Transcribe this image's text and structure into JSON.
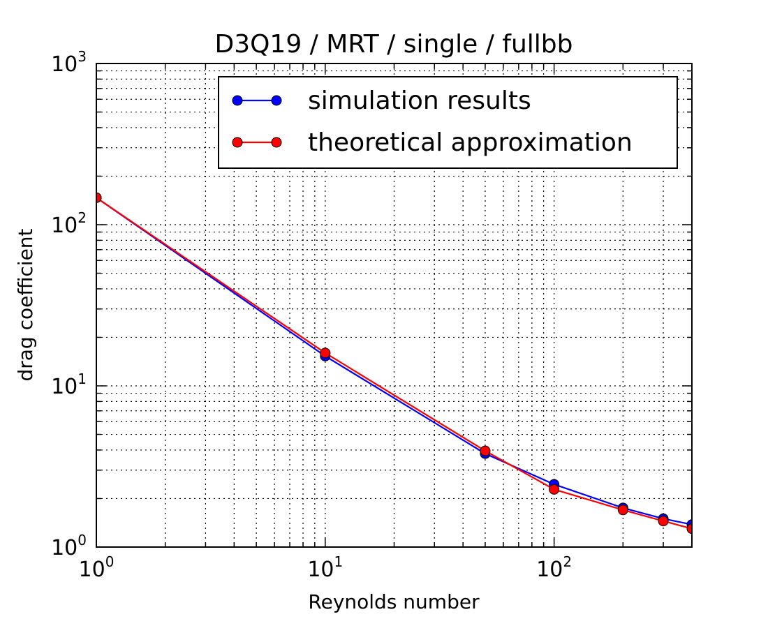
{
  "chart_data": {
    "type": "line",
    "title": "D3Q19 / MRT / single / fullbb",
    "xlabel": "Reynolds number",
    "ylabel": "drag coefficient",
    "x_scale": "log",
    "y_scale": "log",
    "xlim": [
      1,
      400
    ],
    "ylim": [
      1,
      1000
    ],
    "grid": true,
    "legend_position": "top-right",
    "x_ticks": [
      {
        "value": 1,
        "base": "10",
        "exp": "0"
      },
      {
        "value": 10,
        "base": "10",
        "exp": "1"
      },
      {
        "value": 100,
        "base": "10",
        "exp": "2"
      }
    ],
    "y_ticks": [
      {
        "value": 1,
        "base": "10",
        "exp": "0"
      },
      {
        "value": 10,
        "base": "10",
        "exp": "1"
      },
      {
        "value": 100,
        "base": "10",
        "exp": "2"
      },
      {
        "value": 1000,
        "base": "10",
        "exp": "3"
      }
    ],
    "x": [
      1,
      10,
      50,
      100,
      200,
      300,
      400
    ],
    "series": [
      {
        "name": "simulation results",
        "color": "#0000ff",
        "values": [
          147,
          15.3,
          3.8,
          2.45,
          1.75,
          1.5,
          1.38
        ]
      },
      {
        "name": "theoretical approximation",
        "color": "#ff0000",
        "values": [
          147,
          16.0,
          3.95,
          2.28,
          1.7,
          1.45,
          1.3
        ]
      }
    ]
  }
}
